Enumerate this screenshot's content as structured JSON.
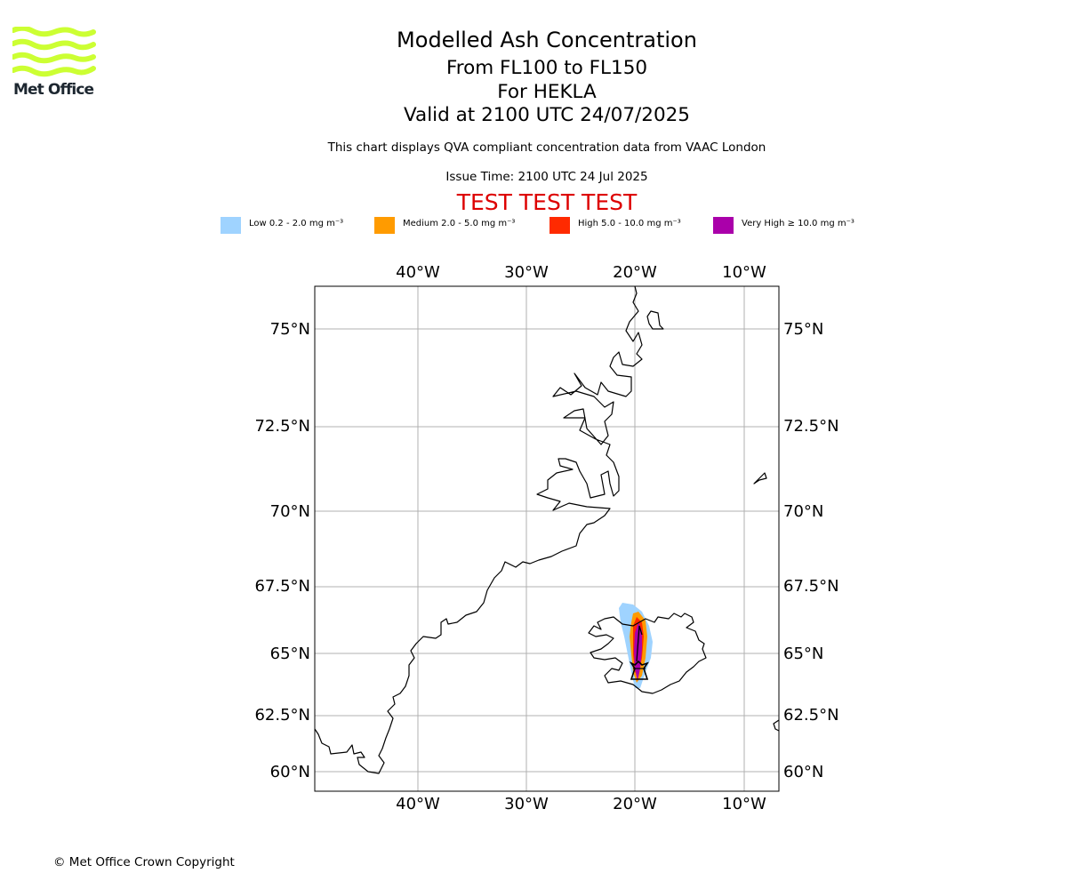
{
  "header": {
    "logo_text": "Met Office",
    "title": "Modelled Ash Concentration",
    "subtitle": "From FL100 to FL150",
    "volcano_line": "For HEKLA",
    "valid_line": "Valid at 2100 UTC 24/07/2025",
    "disclaimer": "This chart displays QVA compliant concentration data from VAAC London",
    "issue_time": "Issue Time: 2100 UTC 24 Jul 2025",
    "test_banner": "TEST TEST TEST"
  },
  "legend": [
    {
      "label": "Low 0.2 - 2.0 mg m⁻³",
      "color": "#9fd3ff"
    },
    {
      "label": "Medium 2.0 - 5.0 mg m⁻³",
      "color": "#ff9b00"
    },
    {
      "label": "High 5.0 - 10.0 mg m⁻³",
      "color": "#ff2a00"
    },
    {
      "label": "Very High  ≥  10.0 mg m⁻³",
      "color": "#aa00aa"
    }
  ],
  "map": {
    "longitude_labels": [
      "40°W",
      "30°W",
      "20°W",
      "10°W"
    ],
    "latitude_labels": [
      "75°N",
      "72.5°N",
      "70°N",
      "67.5°N",
      "65°N",
      "62.5°N",
      "60°N"
    ],
    "gridlines": true,
    "volcano_marker": "volcano-triangle",
    "colors": {
      "coastline": "#000000",
      "grid": "#b0b0b0",
      "logo": "#ccff33"
    }
  },
  "footer": {
    "copyright": "© Met Office Crown Copyright"
  }
}
